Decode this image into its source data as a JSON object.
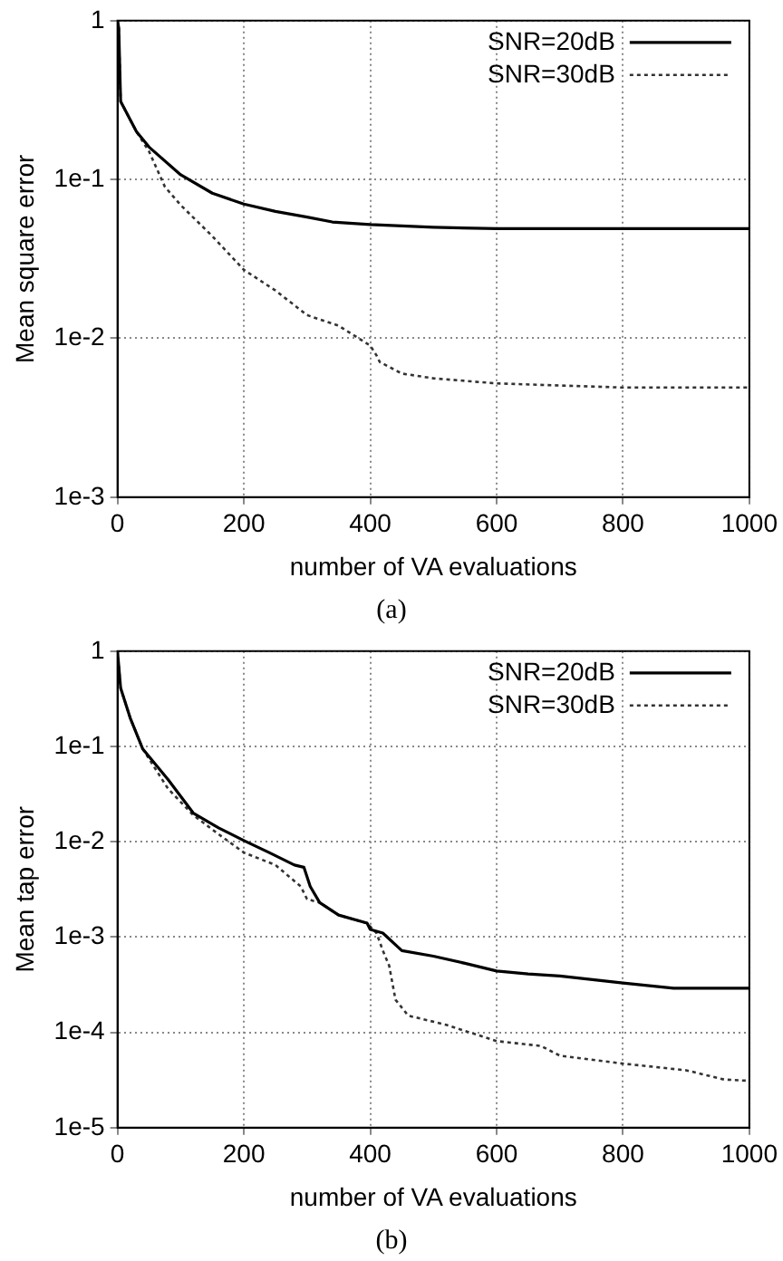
{
  "chart_data": [
    {
      "type": "line",
      "xlabel": "number of VA evaluations",
      "ylabel": "Mean square error",
      "annotations": [
        "(a)"
      ],
      "log": "y",
      "grid": true,
      "legend": "top right",
      "marker": "none",
      "xlim": [
        0,
        1000
      ],
      "xticks": [
        0,
        200,
        400,
        600,
        800,
        1000
      ],
      "ylim": [
        0.001,
        1
      ],
      "yticks": [
        1,
        {
          "value": 0.1,
          "label": "1e-1"
        },
        {
          "value": 0.01,
          "label": "1e-2"
        },
        {
          "value": 0.001,
          "label": "1e-3"
        }
      ],
      "series": [
        {
          "name": "SNR=20dB",
          "color": "#000000",
          "line_style": "solid",
          "x": [
            0,
            2,
            5,
            30,
            50,
            100,
            150,
            200,
            250,
            300,
            340,
            400,
            500,
            600,
            800,
            1000
          ],
          "values": [
            1,
            0.9,
            0.31,
            0.2,
            0.16,
            0.107,
            0.082,
            0.07,
            0.063,
            0.058,
            0.054,
            0.052,
            0.05,
            0.049,
            0.049,
            0.049
          ]
        },
        {
          "name": "SNR=30dB",
          "color": "#333333",
          "line_style": "dotted",
          "x": [
            0,
            2,
            5,
            30,
            50,
            75,
            100,
            150,
            200,
            250,
            300,
            350,
            400,
            410,
            415,
            450,
            500,
            600,
            800,
            1000
          ],
          "values": [
            1,
            0.9,
            0.31,
            0.2,
            0.15,
            0.09,
            0.069,
            0.044,
            0.027,
            0.02,
            0.014,
            0.012,
            0.009,
            0.0078,
            0.0071,
            0.006,
            0.0056,
            0.0052,
            0.0049,
            0.0049
          ]
        }
      ]
    },
    {
      "type": "line",
      "xlabel": "number of VA evaluations",
      "ylabel": "Mean tap error",
      "annotations": [
        "(b)"
      ],
      "log": "y",
      "grid": true,
      "legend": "top right",
      "marker": "none",
      "xlim": [
        0,
        1000
      ],
      "xticks": [
        0,
        200,
        400,
        600,
        800,
        1000
      ],
      "ylim": [
        1e-05,
        1
      ],
      "yticks": [
        1,
        {
          "value": 0.1,
          "label": "1e-1"
        },
        {
          "value": 0.01,
          "label": "1e-2"
        },
        {
          "value": 0.001,
          "label": "1e-3"
        },
        {
          "value": 0.0001,
          "label": "1e-4"
        },
        {
          "value": 1e-05,
          "label": "1e-5"
        }
      ],
      "series": [
        {
          "name": "SNR=20dB",
          "color": "#000000",
          "line_style": "solid",
          "x": [
            0,
            5,
            20,
            40,
            80,
            120,
            160,
            200,
            240,
            280,
            295,
            305,
            320,
            350,
            395,
            400,
            420,
            450,
            500,
            550,
            600,
            650,
            700,
            800,
            880,
            1000
          ],
          "values": [
            1,
            0.41,
            0.2,
            0.094,
            0.045,
            0.02,
            0.014,
            0.0103,
            0.0077,
            0.0057,
            0.0054,
            0.0034,
            0.0023,
            0.0017,
            0.0014,
            0.0012,
            0.0011,
            0.00072,
            0.00063,
            0.00053,
            0.00044,
            0.00041,
            0.00039,
            0.00033,
            0.00029,
            0.00029
          ]
        },
        {
          "name": "SNR=30dB",
          "color": "#333333",
          "line_style": "dotted",
          "x": [
            0,
            5,
            20,
            40,
            80,
            120,
            160,
            200,
            250,
            290,
            300,
            320,
            350,
            395,
            410,
            420,
            430,
            440,
            460,
            520,
            600,
            670,
            700,
            800,
            900,
            960,
            1000
          ],
          "values": [
            1,
            0.41,
            0.2,
            0.094,
            0.036,
            0.019,
            0.012,
            0.0077,
            0.0057,
            0.0034,
            0.0025,
            0.0023,
            0.0017,
            0.0014,
            0.0011,
            0.00072,
            0.0005,
            0.00022,
            0.00015,
            0.00012,
            8.1e-05,
            7.2e-05,
            5.7e-05,
            4.7e-05,
            4e-05,
            3.2e-05,
            3.1e-05
          ]
        }
      ]
    }
  ]
}
